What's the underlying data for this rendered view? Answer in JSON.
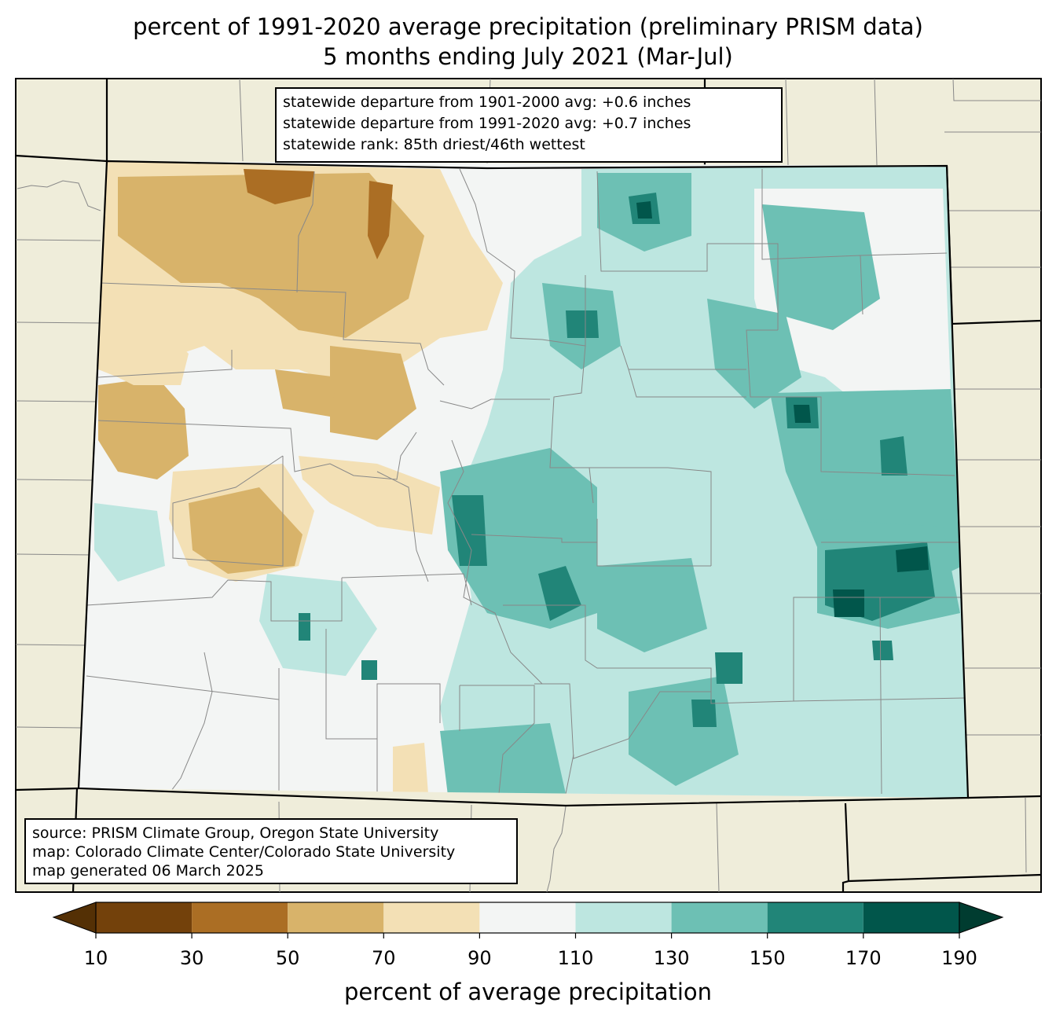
{
  "title": {
    "line1": "percent of 1991-2020 average precipitation (preliminary PRISM data)",
    "line2": "5 months ending July 2021 (Mar-Jul)"
  },
  "stats_box": {
    "line1": "statewide departure from 1901-2000 avg: +0.6 inches",
    "line2": "statewide departure from 1991-2020 avg: +0.7 inches",
    "line3": "statewide rank: 85th driest/46th wettest"
  },
  "source_box": {
    "line1": "source: PRISM Climate Group, Oregon State University",
    "line2": "map: Colorado Climate Center/Colorado State University",
    "line3": "map generated 06 March 2025"
  },
  "colorbar": {
    "title": "percent of average precipitation",
    "ticks": [
      "10",
      "30",
      "50",
      "70",
      "90",
      "110",
      "130",
      "150",
      "170",
      "190"
    ],
    "under_color": "#543005",
    "over_color": "#003c30",
    "colors": [
      "#73410b",
      "#ab6e24",
      "#d8b36a",
      "#f3e0b5",
      "#f3f5f4",
      "#bde6e0",
      "#6dc0b4",
      "#218578",
      "#01564b"
    ]
  },
  "colors": {
    "background_land": "#efedda",
    "state_fill": "#f3f5f4"
  }
}
